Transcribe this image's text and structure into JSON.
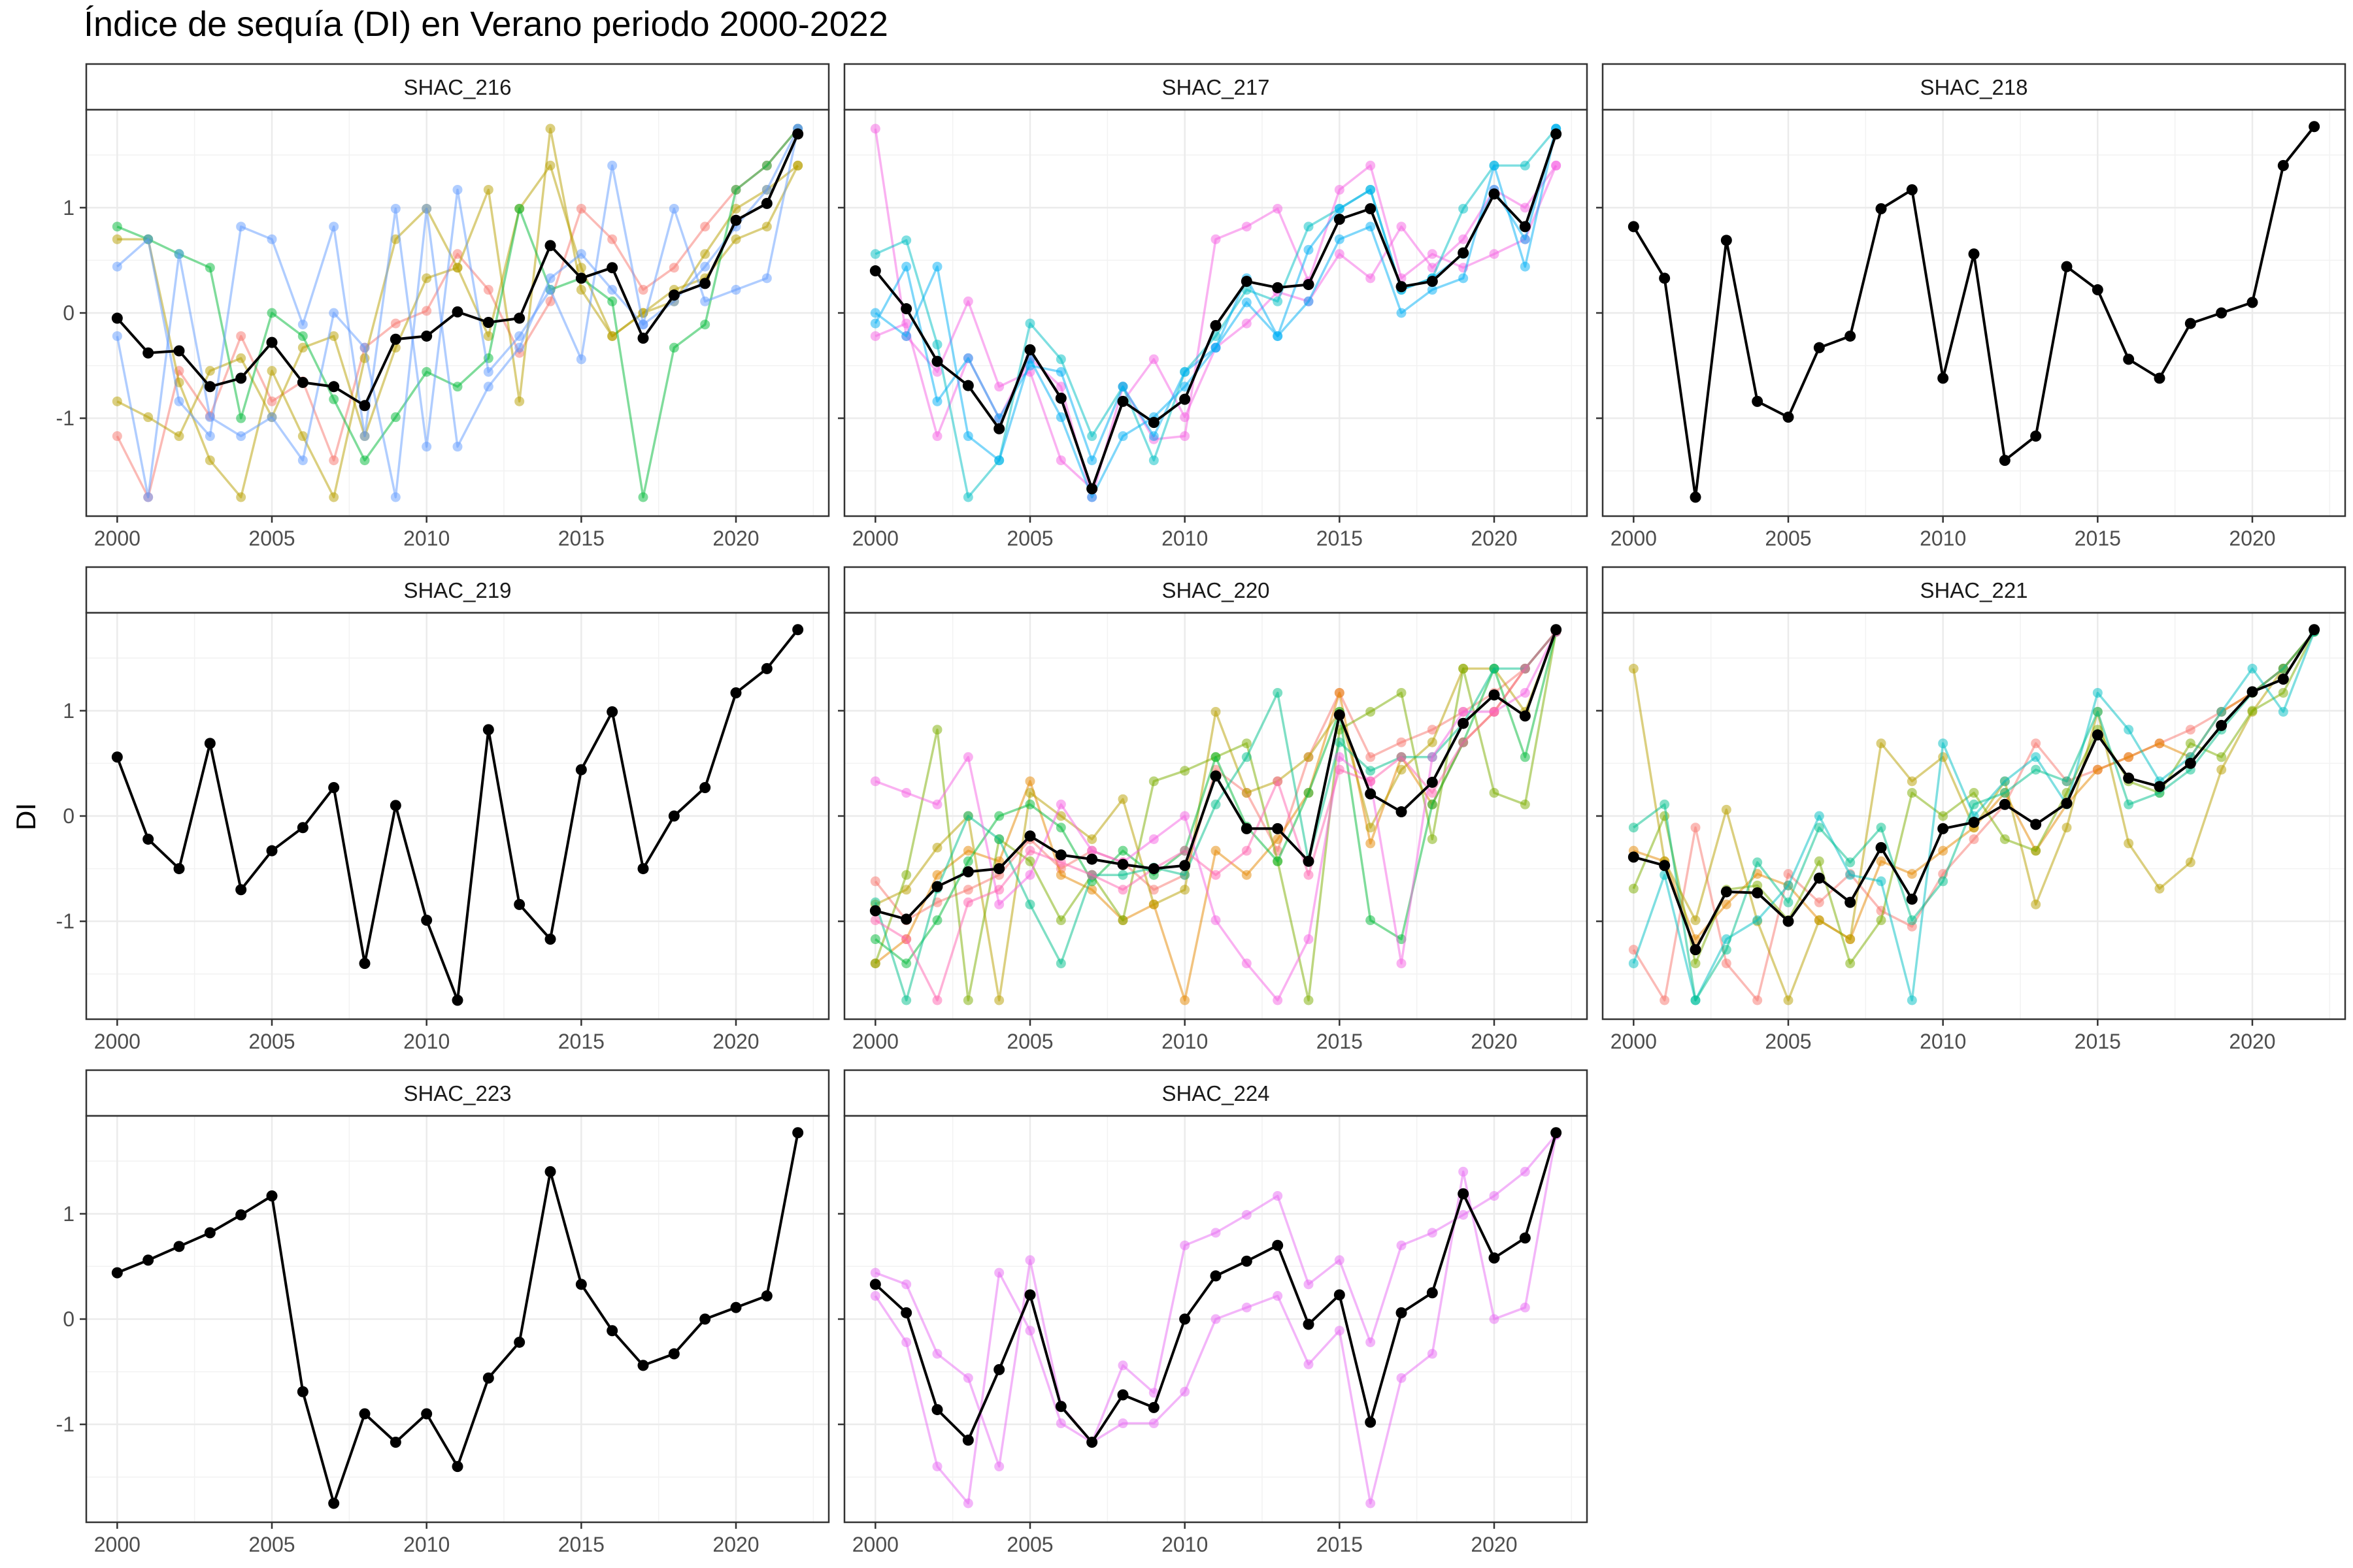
{
  "chart_data": {
    "type": "line",
    "title": "Índice de sequía (DI) en Verano periodo 2000-2022",
    "ylabel": "DI",
    "xlabel": "",
    "xlim": [
      1999,
      2023
    ],
    "ylim": [
      -1.93,
      1.93
    ],
    "x_ticks": [
      2000,
      2005,
      2010,
      2015,
      2020
    ],
    "y_ticks": [
      -1,
      0,
      1
    ],
    "grid": true,
    "legend": "none",
    "mean_color": "#000000",
    "years": [
      2000,
      2001,
      2002,
      2003,
      2004,
      2005,
      2006,
      2007,
      2008,
      2009,
      2010,
      2011,
      2012,
      2013,
      2014,
      2015,
      2016,
      2017,
      2018,
      2019,
      2020,
      2021,
      2022
    ],
    "panels": [
      {
        "name": "SHAC_216",
        "mean": [
          -0.05,
          -0.38,
          -0.36,
          -0.7,
          -0.62,
          -0.28,
          -0.66,
          -0.7,
          -0.88,
          -0.25,
          -0.22,
          0.01,
          -0.09,
          -0.05,
          0.64,
          0.33,
          0.43,
          -0.24,
          0.17,
          0.28,
          0.88,
          1.04,
          1.7
        ],
        "series": [
          {
            "color": "#f8766d",
            "values": [
              -1.17,
              -1.75,
              -0.55,
              -0.98,
              -0.22,
              -0.84,
              -0.65,
              -1.4,
              -0.33,
              -0.1,
              0.02,
              0.56,
              0.22,
              -0.38,
              0.11,
              0.99,
              0.7,
              0.22,
              0.43,
              0.82,
              1.17,
              1.4,
              1.75
            ]
          },
          {
            "color": "#b79f00",
            "values": [
              0.7,
              0.7,
              -0.66,
              -1.4,
              -1.75,
              -0.55,
              -1.17,
              -1.75,
              -0.43,
              0.7,
              0.99,
              0.43,
              1.17,
              -0.84,
              1.75,
              0.22,
              -0.22,
              0.0,
              0.11,
              0.56,
              0.99,
              1.17,
              1.4
            ]
          },
          {
            "color": "#b79f00",
            "values": [
              -0.84,
              -0.99,
              -1.17,
              -0.55,
              -0.43,
              -0.99,
              -0.33,
              -0.22,
              -1.17,
              -0.33,
              0.33,
              0.43,
              -0.22,
              0.99,
              1.4,
              0.43,
              -0.22,
              0.0,
              0.22,
              0.33,
              0.7,
              0.82,
              1.4
            ]
          },
          {
            "color": "#00ba38",
            "values": [
              0.82,
              0.7,
              0.56,
              0.43,
              -1.0,
              0.0,
              -0.22,
              -0.82,
              -1.4,
              -0.99,
              -0.56,
              -0.7,
              -0.43,
              0.99,
              0.22,
              0.33,
              0.11,
              -1.75,
              -0.33,
              -0.11,
              1.17,
              1.4,
              1.75
            ]
          },
          {
            "color": "#619cff",
            "values": [
              0.44,
              0.7,
              -0.84,
              -1.17,
              0.82,
              0.7,
              -0.11,
              0.82,
              -1.17,
              0.99,
              -1.27,
              1.17,
              -0.56,
              -0.22,
              0.22,
              -0.44,
              1.4,
              -0.11,
              0.99,
              0.11,
              0.22,
              0.33,
              1.75
            ]
          },
          {
            "color": "#619cff",
            "values": [
              -0.22,
              -1.75,
              0.56,
              -0.99,
              -1.17,
              -0.99,
              -1.4,
              0.0,
              -0.33,
              -1.75,
              0.99,
              -1.27,
              -0.7,
              -0.33,
              0.33,
              0.56,
              0.22,
              -0.11,
              0.11,
              0.44,
              0.82,
              1.17,
              1.75
            ]
          }
        ]
      },
      {
        "name": "SHAC_217",
        "mean": [
          0.4,
          0.04,
          -0.46,
          -0.69,
          -1.1,
          -0.35,
          -0.81,
          -1.67,
          -0.84,
          -1.04,
          -0.82,
          -0.12,
          0.3,
          0.24,
          0.27,
          0.89,
          0.99,
          0.25,
          0.3,
          0.57,
          1.13,
          0.82,
          1.7
        ],
        "series": [
          {
            "color": "#f564e3",
            "values": [
              1.75,
              -0.22,
              -0.56,
              0.11,
              -0.7,
              -0.56,
              -1.4,
              -1.67,
              -0.84,
              -0.44,
              -0.99,
              -0.33,
              -0.1,
              0.2,
              0.11,
              0.56,
              0.33,
              0.82,
              0.43,
              0.7,
              1.17,
              1.0,
              1.4
            ]
          },
          {
            "color": "#f564e3",
            "values": [
              -0.22,
              -0.1,
              -1.17,
              -0.43,
              -1.0,
              -0.43,
              -0.7,
              -1.75,
              -0.7,
              -1.2,
              -1.17,
              0.7,
              0.82,
              0.99,
              0.3,
              1.17,
              1.4,
              0.33,
              0.56,
              0.43,
              0.56,
              0.7,
              1.4
            ]
          },
          {
            "color": "#00bfc4",
            "values": [
              0.56,
              0.69,
              -0.3,
              -1.75,
              -1.4,
              -0.1,
              -0.44,
              -1.17,
              -0.7,
              -1.4,
              -0.56,
              -0.22,
              0.22,
              0.11,
              0.82,
              0.99,
              1.17,
              0.22,
              0.33,
              0.99,
              1.4,
              1.4,
              1.75
            ]
          },
          {
            "color": "#00b0f6",
            "values": [
              0.0,
              -0.22,
              0.44,
              -1.17,
              -1.4,
              -0.44,
              -0.99,
              -1.75,
              -1.17,
              -0.99,
              -0.7,
              -0.33,
              0.33,
              -0.22,
              0.11,
              0.7,
              0.82,
              0.0,
              0.22,
              0.33,
              1.4,
              0.44,
              1.75
            ]
          },
          {
            "color": "#00b0f6",
            "values": [
              -0.1,
              0.44,
              -0.84,
              -0.43,
              -1.0,
              -0.5,
              -0.56,
              -1.4,
              -0.7,
              -1.17,
              -0.56,
              -0.33,
              0.1,
              -0.22,
              0.6,
              0.99,
              1.17,
              0.22,
              0.33,
              0.56,
              1.17,
              0.7,
              1.75
            ]
          }
        ]
      },
      {
        "name": "SHAC_218",
        "mean": [
          0.82,
          0.33,
          -1.75,
          0.69,
          -0.84,
          -0.99,
          -0.33,
          -0.22,
          0.99,
          1.17,
          -0.62,
          0.56,
          -1.4,
          -1.17,
          0.44,
          0.22,
          -0.44,
          -0.62,
          -0.1,
          0.0,
          0.1,
          1.4,
          1.77
        ],
        "series": []
      },
      {
        "name": "SHAC_219",
        "mean": [
          0.56,
          -0.22,
          -0.5,
          0.69,
          -0.7,
          -0.33,
          -0.11,
          0.27,
          -1.4,
          0.1,
          -0.99,
          -1.75,
          0.82,
          -0.84,
          -1.17,
          0.44,
          0.99,
          -0.5,
          0.0,
          0.27,
          1.17,
          1.4,
          1.77
        ],
        "series": []
      },
      {
        "name": "SHAC_220",
        "mean": [
          -0.9,
          -0.98,
          -0.67,
          -0.53,
          -0.5,
          -0.19,
          -0.37,
          -0.41,
          -0.46,
          -0.5,
          -0.47,
          0.38,
          -0.12,
          -0.12,
          -0.43,
          0.96,
          0.21,
          0.04,
          0.32,
          0.88,
          1.15,
          0.95,
          1.77
        ],
        "series": [
          {
            "color": "#f8766d",
            "values": [
              -0.62,
              -0.99,
              -0.82,
              -0.7,
              -0.56,
              -0.22,
              -0.5,
              -0.33,
              -0.44,
              -0.7,
              -0.56,
              0.44,
              0.22,
              -0.33,
              0.56,
              1.17,
              0.56,
              0.7,
              0.82,
              0.99,
              1.17,
              1.4,
              1.75
            ]
          },
          {
            "color": "#e58700",
            "values": [
              -1.4,
              -1.17,
              -0.56,
              -0.33,
              -0.43,
              0.33,
              -0.56,
              -0.7,
              -0.99,
              -0.84,
              -1.75,
              -0.33,
              -0.56,
              -0.22,
              0.22,
              1.17,
              -0.26,
              0.56,
              0.11,
              0.7,
              0.99,
              1.4,
              1.75
            ]
          },
          {
            "color": "#b79f00",
            "values": [
              -0.84,
              -0.7,
              -0.3,
              0.0,
              -1.75,
              0.22,
              0.0,
              -0.22,
              0.16,
              -0.84,
              -0.7,
              0.99,
              0.22,
              0.33,
              0.56,
              0.99,
              -0.11,
              0.44,
              0.7,
              1.4,
              1.4,
              0.99,
              1.75
            ]
          },
          {
            "color": "#7cae00",
            "values": [
              -1.4,
              -0.56,
              0.82,
              -1.75,
              -0.22,
              -0.43,
              -0.99,
              -0.56,
              -0.99,
              0.33,
              0.43,
              0.56,
              0.69,
              -0.43,
              -1.75,
              0.82,
              0.99,
              1.17,
              -0.22,
              1.4,
              0.22,
              0.11,
              1.75
            ]
          },
          {
            "color": "#00ba38",
            "values": [
              -1.17,
              -1.4,
              -0.99,
              -0.43,
              0.0,
              0.11,
              -0.11,
              -0.62,
              -0.33,
              -0.56,
              -0.33,
              0.56,
              -0.1,
              -0.43,
              0.22,
              0.99,
              -0.99,
              -1.17,
              0.11,
              0.7,
              1.4,
              0.56,
              1.75
            ]
          },
          {
            "color": "#00c08b",
            "values": [
              -0.82,
              -1.75,
              -0.69,
              0.0,
              -0.22,
              -0.84,
              -1.4,
              -0.56,
              -0.56,
              -0.49,
              -0.56,
              0.11,
              0.56,
              1.17,
              -0.43,
              0.7,
              0.43,
              0.56,
              0.56,
              0.88,
              1.4,
              1.4,
              1.75
            ]
          },
          {
            "color": "#f564e3",
            "values": [
              0.33,
              0.22,
              0.11,
              0.56,
              -0.84,
              -0.56,
              0.11,
              -0.33,
              -0.44,
              -0.22,
              0.0,
              -0.99,
              -1.4,
              -1.75,
              -1.17,
              0.56,
              0.33,
              -1.4,
              0.56,
              0.99,
              0.99,
              1.17,
              1.75
            ]
          },
          {
            "color": "#ff64b0",
            "values": [
              -0.99,
              -1.17,
              -1.75,
              -0.82,
              -0.7,
              -0.33,
              -0.44,
              -0.56,
              -0.7,
              -0.5,
              -0.33,
              -0.56,
              -0.33,
              0.33,
              -0.56,
              0.44,
              0.33,
              0.56,
              0.22,
              0.7,
              0.99,
              1.4,
              1.75
            ]
          }
        ]
      },
      {
        "name": "SHAC_221",
        "mean": [
          -0.39,
          -0.47,
          -1.27,
          -0.72,
          -0.73,
          -1.0,
          -0.59,
          -0.82,
          -0.3,
          -0.79,
          -0.12,
          -0.06,
          0.11,
          -0.08,
          0.12,
          0.77,
          0.36,
          0.28,
          0.5,
          0.86,
          1.18,
          1.3,
          1.77
        ],
        "series": [
          {
            "color": "#f8766d",
            "values": [
              -1.27,
              -1.75,
              -0.11,
              -1.4,
              -1.75,
              -0.55,
              -0.82,
              -0.55,
              -0.9,
              -1.05,
              -0.55,
              -0.22,
              0.11,
              0.69,
              0.33,
              0.44,
              0.56,
              0.69,
              0.82,
              0.99,
              1.17,
              1.4,
              1.75
            ]
          },
          {
            "color": "#e58700",
            "values": [
              -0.33,
              -0.43,
              -1.17,
              -0.84,
              -0.55,
              -0.66,
              -0.99,
              -1.17,
              -0.43,
              -0.55,
              -0.33,
              -0.11,
              0.22,
              -0.33,
              0.11,
              0.44,
              0.56,
              0.69,
              0.56,
              0.99,
              1.17,
              1.4,
              1.75
            ]
          },
          {
            "color": "#b79f00",
            "values": [
              1.4,
              -0.43,
              -0.99,
              0.06,
              -1.0,
              -1.75,
              -0.99,
              -1.17,
              0.69,
              0.33,
              0.56,
              -0.11,
              0.33,
              -0.84,
              -0.11,
              0.99,
              -0.26,
              -0.69,
              -0.44,
              0.44,
              0.99,
              1.4,
              1.75
            ]
          },
          {
            "color": "#7cae00",
            "values": [
              -0.69,
              0.0,
              -1.4,
              -0.7,
              -0.66,
              -0.99,
              -0.43,
              -1.4,
              -0.99,
              0.22,
              0.0,
              0.22,
              -0.22,
              -0.33,
              0.22,
              0.82,
              0.33,
              0.22,
              0.69,
              0.56,
              1.0,
              1.17,
              1.75
            ]
          },
          {
            "color": "#00bfc4",
            "values": [
              -1.4,
              -0.56,
              -1.75,
              -1.17,
              -0.99,
              -0.66,
              0.0,
              -0.56,
              -0.62,
              -1.75,
              0.69,
              0.0,
              0.33,
              0.56,
              0.11,
              1.17,
              0.82,
              0.33,
              0.56,
              0.99,
              1.4,
              0.99,
              1.75
            ]
          },
          {
            "color": "#00c08b",
            "values": [
              -0.11,
              0.11,
              -1.75,
              -1.27,
              -0.44,
              -0.82,
              -0.11,
              -0.44,
              -0.11,
              -0.99,
              -0.62,
              0.11,
              0.22,
              0.44,
              0.33,
              0.99,
              0.11,
              0.22,
              0.44,
              0.82,
              1.17,
              1.4,
              1.75
            ]
          }
        ]
      },
      {
        "name": "SHAC_223",
        "mean": [
          0.44,
          0.56,
          0.69,
          0.82,
          0.99,
          1.17,
          -0.69,
          -1.75,
          -0.9,
          -1.17,
          -0.9,
          -1.4,
          -0.56,
          -0.22,
          1.4,
          0.33,
          -0.11,
          -0.44,
          -0.33,
          0.0,
          0.11,
          0.22,
          1.77
        ],
        "series": []
      },
      {
        "name": "SHAC_224",
        "mean": [
          0.33,
          0.06,
          -0.86,
          -1.15,
          -0.48,
          0.23,
          -0.83,
          -1.17,
          -0.72,
          -0.84,
          0.0,
          0.41,
          0.55,
          0.7,
          -0.05,
          0.23,
          -0.98,
          0.06,
          0.25,
          1.19,
          0.58,
          0.77,
          1.77
        ],
        "series": [
          {
            "color": "#e76bf3",
            "values": [
              0.44,
              0.33,
              -0.33,
              -0.56,
              -1.4,
              0.56,
              -0.82,
              -1.17,
              -0.44,
              -0.7,
              0.7,
              0.82,
              0.99,
              1.17,
              0.33,
              0.56,
              -0.22,
              0.7,
              0.82,
              0.99,
              1.17,
              1.4,
              1.75
            ]
          },
          {
            "color": "#e76bf3",
            "values": [
              0.22,
              -0.22,
              -1.4,
              -1.75,
              0.44,
              -0.11,
              -0.99,
              -1.17,
              -0.99,
              -0.99,
              -0.69,
              0.0,
              0.11,
              0.22,
              -0.43,
              -0.11,
              -1.75,
              -0.56,
              -0.33,
              1.4,
              0.0,
              0.11,
              1.75
            ]
          }
        ]
      }
    ]
  }
}
